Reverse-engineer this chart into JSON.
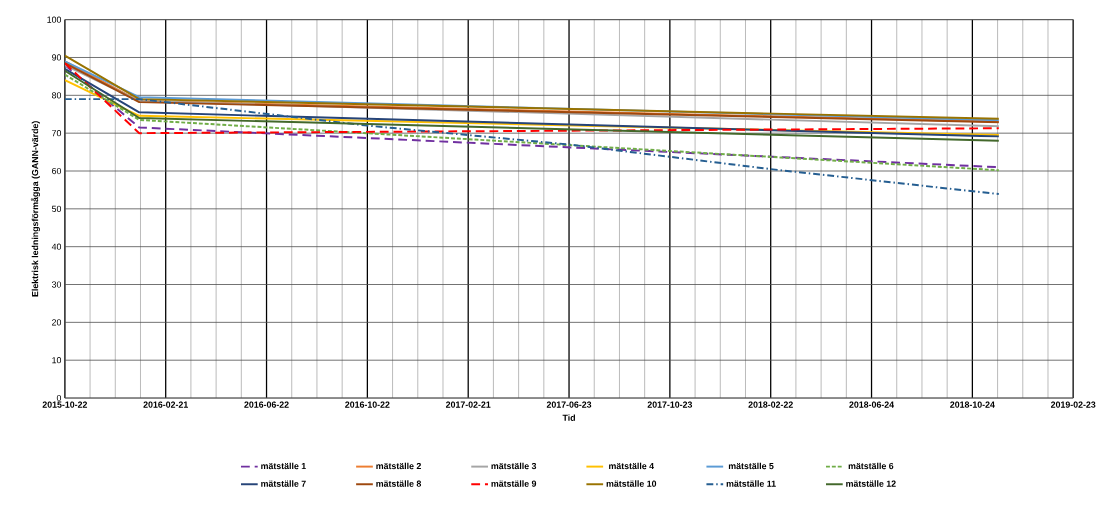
{
  "chart_data": {
    "type": "line",
    "xlabel": "Tid",
    "ylabel": "Elektrisk ledningsförmågga (GANN-värde)",
    "x": [
      "2015-10-22",
      "2016-01-20",
      "2018-11-25"
    ],
    "xlim": [
      "2015-10-22",
      "2019-02-23"
    ],
    "xticks": [
      "2015-10-22",
      "2016-02-21",
      "2016-06-22",
      "2016-10-22",
      "2017-02-21",
      "2017-06-23",
      "2017-10-23",
      "2018-02-22",
      "2018-06-24",
      "2018-10-24",
      "2019-02-23"
    ],
    "ylim": [
      0,
      100
    ],
    "yticks": [
      0,
      10,
      20,
      30,
      40,
      50,
      60,
      70,
      80,
      90,
      100
    ],
    "grid": true,
    "legend": "bottom",
    "marker": "none",
    "series": [
      {
        "name": "mätställe 1",
        "color": "#7030a0",
        "line_style": "dashed",
        "values": [
          88,
          71.5,
          61
        ]
      },
      {
        "name": "mätställe 2",
        "color": "#ed7d31",
        "values": [
          89,
          78.5,
          73
        ]
      },
      {
        "name": "mätställe 3",
        "color": "#a5a5a5",
        "values": [
          88,
          78.5,
          71.8
        ]
      },
      {
        "name": "mätställe 4",
        "color": "#ffc000",
        "values": [
          84,
          74.6,
          69.5
        ]
      },
      {
        "name": "mätställe 5",
        "color": "#5b9bd5",
        "values": [
          89,
          79.5,
          73.4
        ]
      },
      {
        "name": "mätställe 6",
        "color": "#70ad47",
        "line_style": "dotted",
        "values": [
          85.5,
          73.5,
          60.2
        ]
      },
      {
        "name": "mätställe 7",
        "color": "#264478",
        "values": [
          87,
          75.5,
          69.1
        ]
      },
      {
        "name": "mätställe 8",
        "color": "#9e480e",
        "values": [
          88.5,
          78.2,
          72.9
        ]
      },
      {
        "name": "mätställe 9",
        "color": "#ff0000",
        "line_style": "dashed",
        "values": [
          88.5,
          70,
          71.3
        ]
      },
      {
        "name": "mätställe 10",
        "color": "#997300",
        "values": [
          90.5,
          79,
          73.8
        ]
      },
      {
        "name": "mätställe 11",
        "color": "#255e91",
        "line_style": "dashdot",
        "x": [
          "2015-10-22",
          "2016-01-20",
          "2016-10-22",
          "2017-06-23",
          "2018-02-22",
          "2018-11-25"
        ],
        "values": [
          79,
          79,
          72,
          67,
          60.5,
          53.9
        ]
      },
      {
        "name": "mätställe 12",
        "color": "#43682b",
        "values": [
          86.5,
          74,
          68
        ]
      }
    ]
  }
}
